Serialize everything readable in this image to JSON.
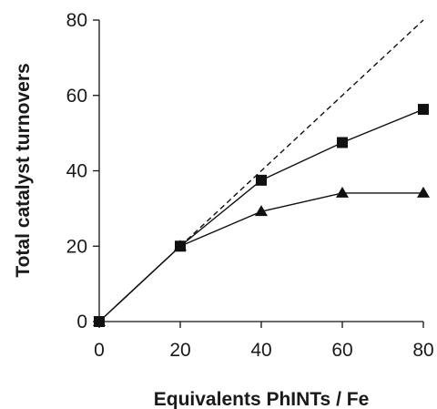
{
  "chart_data": {
    "type": "line",
    "title": "",
    "xlabel": "Equivalents PhINTs / Fe",
    "ylabel": "Total catalyst turnovers",
    "xlim": [
      0,
      80
    ],
    "ylim": [
      0,
      80
    ],
    "x_ticks": [
      "0",
      "20",
      "40",
      "60",
      "80"
    ],
    "y_ticks": [
      "0",
      "20",
      "40",
      "60",
      "80"
    ],
    "grid": false,
    "legend": "none",
    "series": [
      {
        "marker": "square",
        "line": "solid",
        "color": "#111111",
        "x": [
          0,
          20,
          40,
          60,
          80
        ],
        "y": [
          0,
          20,
          37.5,
          47.5,
          56.3
        ]
      },
      {
        "marker": "triangle",
        "line": "solid",
        "color": "#111111",
        "x": [
          0,
          20,
          40,
          60,
          80
        ],
        "y": [
          0,
          20,
          29.2,
          34.1,
          34.1
        ]
      },
      {
        "marker": "none",
        "line": "dashed",
        "color": "#111111",
        "x": [
          20,
          80
        ],
        "y": [
          20,
          80
        ]
      }
    ]
  }
}
